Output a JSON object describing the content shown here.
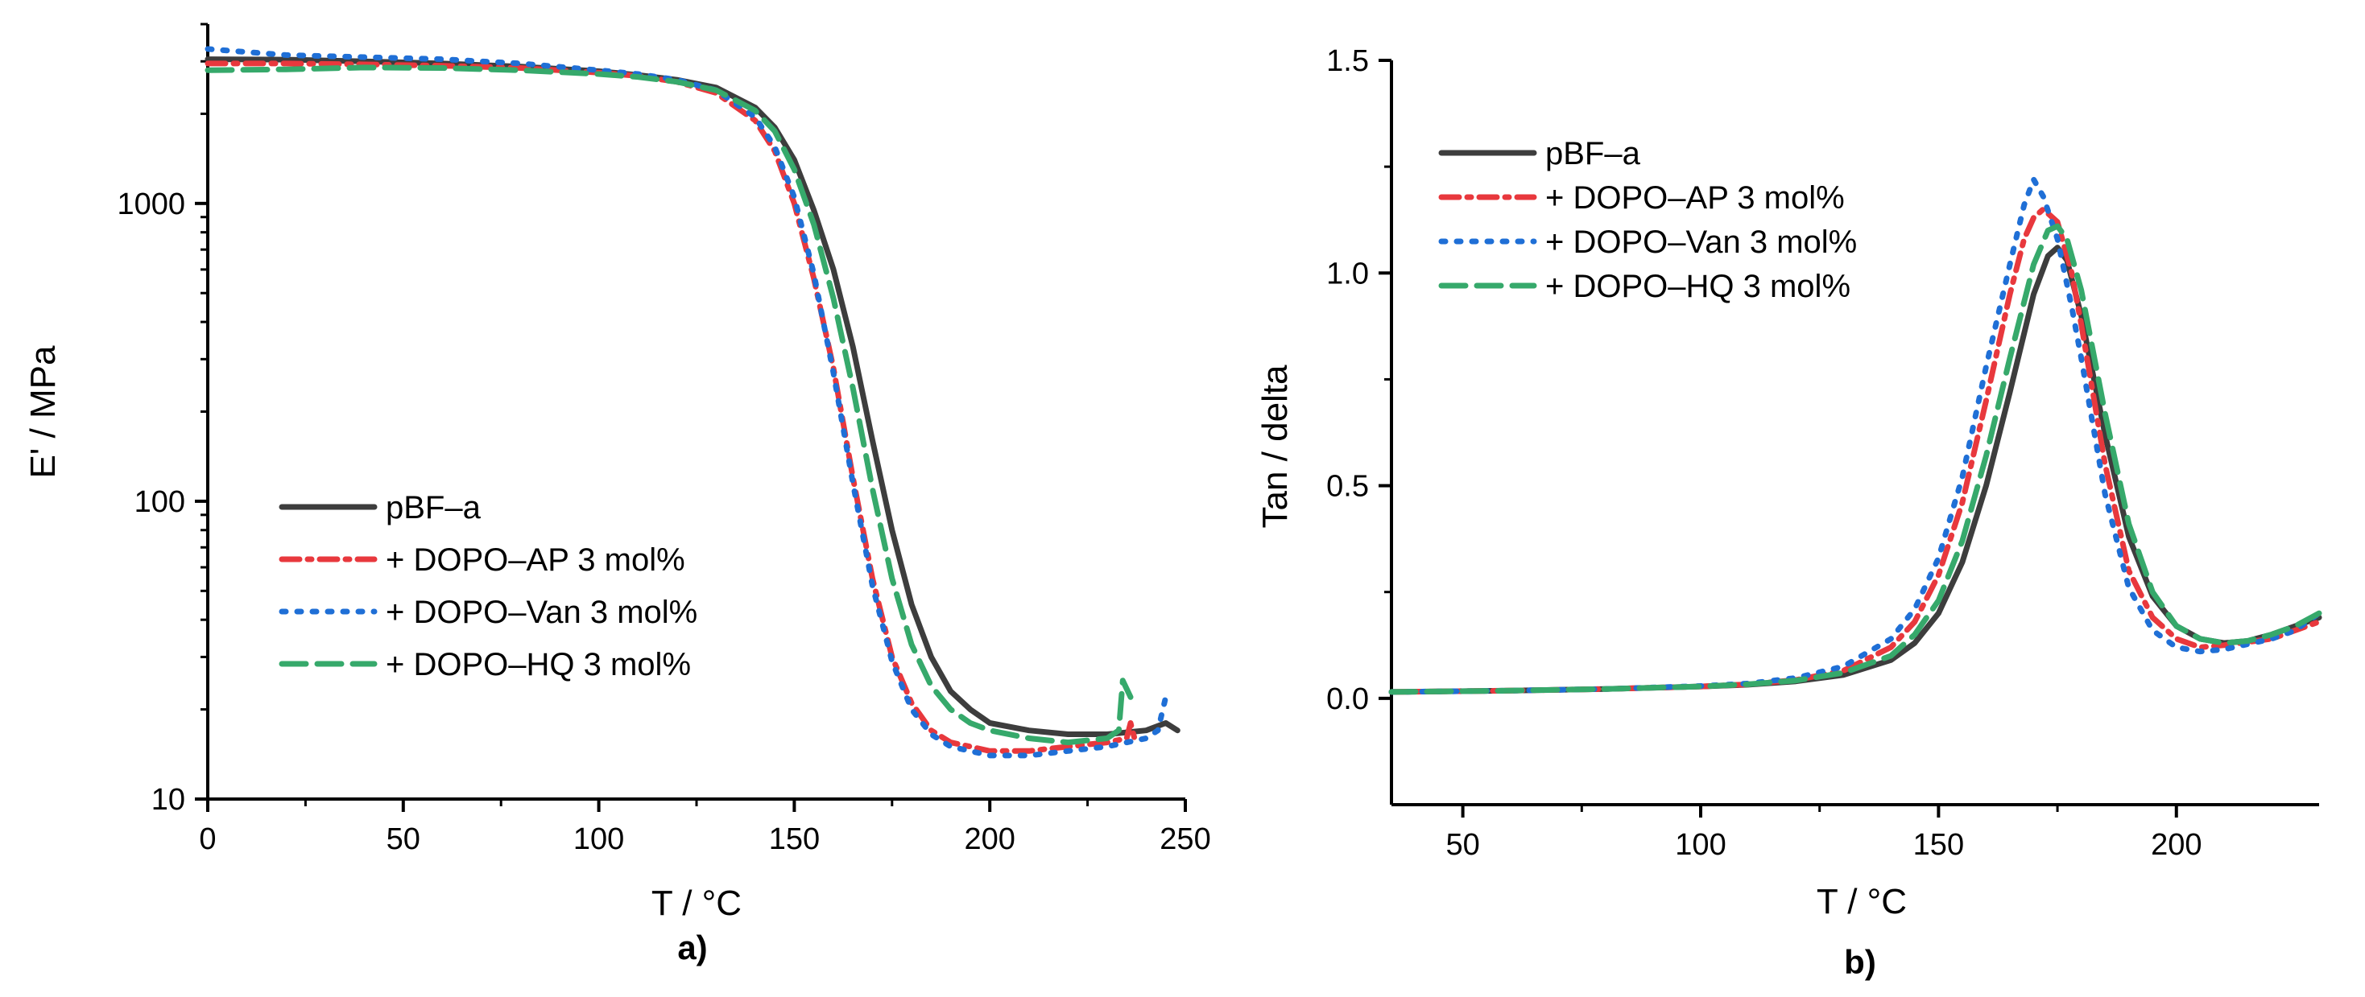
{
  "figure": {
    "panel_a_label": "a)",
    "panel_b_label": "b)"
  },
  "series_styles": [
    {
      "name": "pBF–a",
      "color": "#3d3d3d",
      "dash": "",
      "width": 7
    },
    {
      "name": "+ DOPO–AP 3 mol%",
      "color": "#e8383d",
      "dash": "22,10,5,10",
      "width": 7
    },
    {
      "name": "+ DOPO–Van 3 mol%",
      "color": "#1f6fd6",
      "dash": "5,14",
      "width": 7
    },
    {
      "name": "+ DOPO–HQ 3 mol%",
      "color": "#36a96b",
      "dash": "30,14",
      "width": 7
    }
  ],
  "chart_data": [
    {
      "id": "a",
      "type": "line",
      "title": "",
      "xlabel": "T / °C",
      "ylabel": "E' / MPa",
      "yscale": "log",
      "xlim": [
        0,
        250
      ],
      "ylim": [
        10,
        4000
      ],
      "xticks": [
        0,
        50,
        100,
        150,
        200,
        250
      ],
      "yticks": [
        10,
        100,
        1000
      ],
      "xtick_labels": [
        "0",
        "50",
        "100",
        "150",
        "200",
        "250"
      ],
      "ytick_labels": [
        "10",
        "100",
        "1000"
      ],
      "legend": [
        "pBF–a",
        "+ DOPO–AP 3 mol%",
        "+ DOPO–Van 3 mol%",
        "+ DOPO–HQ 3 mol%"
      ],
      "legend_position": "lower-left",
      "series": [
        {
          "name": "pBF–a",
          "x": [
            0,
            20,
            40,
            60,
            80,
            100,
            110,
            120,
            130,
            140,
            145,
            150,
            155,
            160,
            165,
            170,
            175,
            180,
            185,
            190,
            195,
            200,
            210,
            220,
            230,
            240,
            245,
            248
          ],
          "y": [
            3050,
            3040,
            3000,
            2950,
            2880,
            2780,
            2700,
            2600,
            2450,
            2100,
            1800,
            1400,
            950,
            600,
            330,
            160,
            80,
            45,
            30,
            23,
            20,
            18,
            17,
            16.5,
            16.5,
            17,
            18,
            17
          ]
        },
        {
          "name": "+ DOPO–AP 3 mol%",
          "x": [
            0,
            20,
            40,
            60,
            80,
            100,
            110,
            120,
            130,
            140,
            145,
            150,
            155,
            160,
            165,
            170,
            175,
            180,
            185,
            190,
            195,
            200,
            210,
            220,
            230,
            235,
            236,
            237
          ],
          "y": [
            2950,
            2950,
            2930,
            2900,
            2850,
            2750,
            2680,
            2560,
            2350,
            1900,
            1500,
            1000,
            560,
            280,
            120,
            55,
            30,
            21,
            17,
            15.5,
            15,
            14.5,
            14.5,
            15,
            15.5,
            16,
            18,
            16
          ]
        },
        {
          "name": "+ DOPO–Van 3 mol%",
          "x": [
            0,
            20,
            40,
            60,
            80,
            100,
            110,
            120,
            130,
            140,
            145,
            150,
            155,
            160,
            165,
            170,
            175,
            180,
            185,
            190,
            195,
            200,
            210,
            220,
            230,
            240,
            243,
            245
          ],
          "y": [
            3300,
            3150,
            3100,
            3050,
            2950,
            2800,
            2720,
            2600,
            2400,
            1950,
            1550,
            1050,
            580,
            270,
            115,
            52,
            29,
            20,
            16.5,
            15,
            14.5,
            14,
            14,
            14.5,
            15,
            16,
            17,
            22
          ]
        },
        {
          "name": "+ DOPO–HQ 3 mol%",
          "x": [
            0,
            20,
            40,
            60,
            80,
            100,
            110,
            120,
            130,
            140,
            145,
            150,
            155,
            160,
            165,
            170,
            175,
            180,
            185,
            190,
            195,
            200,
            210,
            220,
            230,
            233,
            234,
            236
          ],
          "y": [
            2800,
            2820,
            2860,
            2850,
            2800,
            2720,
            2660,
            2560,
            2400,
            2050,
            1750,
            1300,
            850,
            480,
            240,
            110,
            55,
            33,
            24,
            20,
            18,
            17,
            16,
            15.5,
            16,
            17,
            25,
            22
          ]
        }
      ]
    },
    {
      "id": "b",
      "type": "line",
      "title": "",
      "xlabel": "T / °C",
      "ylabel": "Tan / delta",
      "yscale": "linear",
      "xlim": [
        35,
        230
      ],
      "ylim": [
        -0.25,
        1.5
      ],
      "xticks": [
        50,
        100,
        150,
        200
      ],
      "yticks": [
        0.0,
        0.5,
        1.0,
        1.5
      ],
      "xtick_labels": [
        "50",
        "100",
        "150",
        "200"
      ],
      "ytick_labels": [
        "0.0",
        "0.5",
        "1.0",
        "1.5"
      ],
      "legend": [
        "pBF–a",
        "+ DOPO–AP 3 mol%",
        "+ DOPO–Van 3 mol%",
        "+ DOPO–HQ 3 mol%"
      ],
      "legend_position": "upper-left",
      "series": [
        {
          "name": "pBF–a",
          "x": [
            35,
            60,
            80,
            100,
            110,
            120,
            130,
            140,
            145,
            150,
            155,
            160,
            165,
            170,
            173,
            175,
            177,
            180,
            185,
            190,
            195,
            200,
            205,
            210,
            215,
            220,
            225,
            230
          ],
          "y": [
            0.015,
            0.018,
            0.022,
            0.028,
            0.032,
            0.04,
            0.055,
            0.09,
            0.13,
            0.2,
            0.32,
            0.5,
            0.72,
            0.95,
            1.04,
            1.06,
            1.03,
            0.9,
            0.62,
            0.38,
            0.24,
            0.17,
            0.14,
            0.13,
            0.135,
            0.15,
            0.17,
            0.19
          ]
        },
        {
          "name": "+ DOPO–AP 3 mol%",
          "x": [
            35,
            60,
            80,
            100,
            110,
            120,
            130,
            140,
            145,
            150,
            155,
            160,
            165,
            168,
            170,
            172,
            175,
            178,
            180,
            185,
            190,
            195,
            200,
            205,
            210,
            220,
            225,
            230
          ],
          "y": [
            0.015,
            0.018,
            0.022,
            0.028,
            0.033,
            0.043,
            0.065,
            0.12,
            0.18,
            0.29,
            0.46,
            0.7,
            0.95,
            1.08,
            1.13,
            1.15,
            1.12,
            1.0,
            0.88,
            0.55,
            0.3,
            0.19,
            0.14,
            0.12,
            0.125,
            0.14,
            0.16,
            0.18
          ]
        },
        {
          "name": "+ DOPO–Van 3 mol%",
          "x": [
            35,
            60,
            80,
            100,
            110,
            120,
            130,
            140,
            145,
            150,
            155,
            160,
            165,
            168,
            170,
            172,
            175,
            178,
            180,
            185,
            190,
            195,
            200,
            205,
            210,
            220,
            225,
            230
          ],
          "y": [
            0.015,
            0.018,
            0.022,
            0.029,
            0.035,
            0.048,
            0.075,
            0.14,
            0.21,
            0.33,
            0.52,
            0.78,
            1.02,
            1.16,
            1.22,
            1.18,
            1.08,
            0.92,
            0.8,
            0.48,
            0.26,
            0.16,
            0.12,
            0.11,
            0.115,
            0.14,
            0.16,
            0.2
          ]
        },
        {
          "name": "+ DOPO–HQ 3 mol%",
          "x": [
            35,
            60,
            80,
            100,
            110,
            120,
            130,
            140,
            145,
            150,
            155,
            160,
            165,
            170,
            173,
            175,
            177,
            180,
            185,
            190,
            195,
            200,
            205,
            210,
            215,
            220,
            225,
            230
          ],
          "y": [
            0.015,
            0.018,
            0.022,
            0.028,
            0.033,
            0.042,
            0.06,
            0.1,
            0.15,
            0.23,
            0.37,
            0.57,
            0.8,
            1.02,
            1.1,
            1.11,
            1.08,
            0.96,
            0.67,
            0.41,
            0.25,
            0.17,
            0.14,
            0.13,
            0.135,
            0.15,
            0.17,
            0.2
          ]
        }
      ]
    }
  ]
}
